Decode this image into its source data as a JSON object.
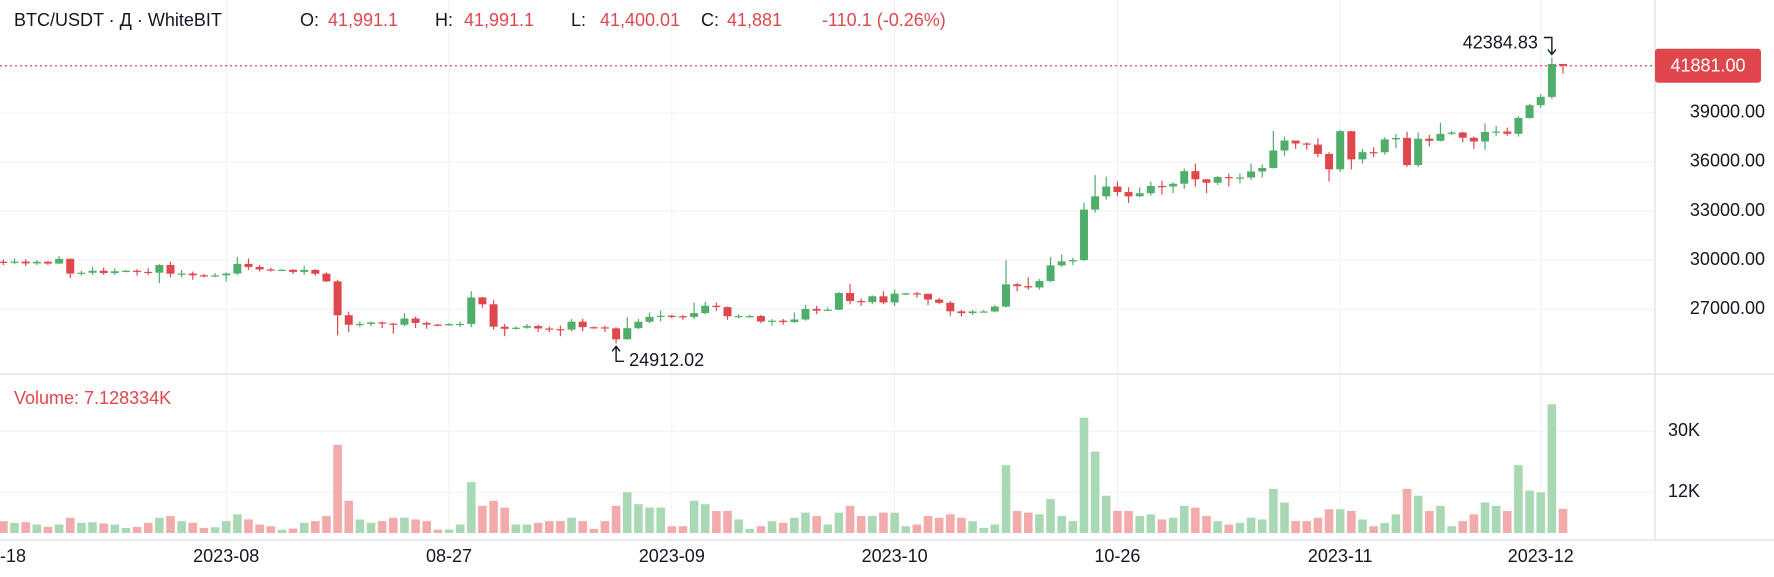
{
  "chart_data": {
    "type": "candlestick",
    "header": {
      "symbol": "BTC/USDT · Д · WhiteBIT",
      "open_label": "O:",
      "open": {
        "value": 41991.1,
        "label": "41,991.1"
      },
      "high_label": "H:",
      "high": {
        "value": 41991.1,
        "label": "41,991.1"
      },
      "low_label": "L:",
      "low": {
        "value": 41400.01,
        "label": "41,400.01"
      },
      "close_label": "C:",
      "close": {
        "value": 41881,
        "label": "41,881"
      },
      "change": "-110.1 (-0.26%)"
    },
    "volume_legend": "Volume: 7.128334K",
    "up_color": "#4fae69",
    "down_color": "#e0474c",
    "volume_up_color": "#a9d9b4",
    "volume_down_color": "#f3aaab",
    "open": [
      29900,
      29850,
      29910,
      29800,
      29900,
      29790,
      30080,
      29180,
      29230,
      29350,
      29210,
      29320,
      29350,
      29280,
      29230,
      29700,
      29170,
      29180,
      29070,
      29060,
      29070,
      29180,
      29770,
      29580,
      29430,
      29400,
      29410,
      29280,
      29400,
      29170,
      28700,
      26630,
      26050,
      26100,
      26190,
      26120,
      26050,
      26430,
      26160,
      26060,
      26010,
      26090,
      26100,
      27720,
      27300,
      25930,
      25800,
      25870,
      25970,
      25820,
      25780,
      25750,
      26240,
      25900,
      25890,
      25830,
      25160,
      25840,
      26230,
      26530,
      26600,
      26570,
      26530,
      26760,
      27210,
      27130,
      26570,
      26580,
      26580,
      26250,
      26300,
      26220,
      26370,
      27020,
      26910,
      26970,
      27990,
      27500,
      27430,
      27790,
      27410,
      27950,
      27970,
      27940,
      27590,
      27390,
      26870,
      26760,
      26860,
      26860,
      27160,
      28520,
      28410,
      28330,
      28720,
      29680,
      29920,
      30000,
      33090,
      33900,
      34500,
      34160,
      33900,
      34090,
      34530,
      34500,
      34670,
      35440,
      34940,
      34730,
      35080,
      35050,
      35050,
      35420,
      35630,
      36700,
      37310,
      37130,
      37060,
      36490,
      35550,
      37880,
      36160,
      36600,
      36590,
      37380,
      37470,
      35810,
      37420,
      37290,
      37720,
      37800,
      37480,
      37250,
      37830,
      37860,
      37720,
      38690,
      39470,
      39980,
      41991.1
    ],
    "high": [
      30050,
      30100,
      30050,
      30000,
      29950,
      30250,
      30100,
      29350,
      29600,
      29550,
      29500,
      29400,
      29450,
      29500,
      29750,
      29900,
      29400,
      29300,
      29150,
      29200,
      29250,
      30200,
      30100,
      29700,
      29550,
      29450,
      29450,
      29650,
      29450,
      29250,
      28800,
      26850,
      26250,
      26250,
      26250,
      26150,
      26750,
      26550,
      26250,
      26100,
      26150,
      26250,
      28100,
      27750,
      27550,
      26100,
      25950,
      26100,
      26050,
      25950,
      26000,
      26400,
      26400,
      25950,
      26000,
      25900,
      26500,
      26400,
      26800,
      26900,
      26650,
      26650,
      27400,
      27450,
      27400,
      27160,
      26700,
      26650,
      26650,
      26400,
      26400,
      26800,
      27250,
      27200,
      27100,
      28050,
      28550,
      27650,
      27850,
      28100,
      28200,
      28000,
      28050,
      27950,
      27700,
      27500,
      26950,
      26950,
      26950,
      27250,
      30000,
      28600,
      28950,
      28850,
      30200,
      30350,
      30150,
      33500,
      35200,
      35100,
      34800,
      34450,
      34450,
      34800,
      34850,
      34750,
      35600,
      35900,
      34950,
      35150,
      35300,
      35300,
      35900,
      35850,
      37900,
      37550,
      37200,
      37200,
      37450,
      36600,
      37950,
      37900,
      36800,
      36900,
      37500,
      37700,
      37850,
      37800,
      37650,
      38400,
      37900,
      37850,
      37550,
      38350,
      38200,
      38100,
      38800,
      39550,
      40150,
      42384.83,
      41991.1
    ],
    "low": [
      29700,
      29750,
      29650,
      29700,
      29700,
      29750,
      28900,
      29050,
      29100,
      29100,
      29100,
      29250,
      29050,
      29100,
      28600,
      28950,
      28950,
      28800,
      28950,
      28950,
      28700,
      29100,
      29400,
      29300,
      29300,
      29350,
      29150,
      29100,
      29050,
      28650,
      25400,
      25600,
      25900,
      25950,
      25850,
      25500,
      25950,
      25850,
      25800,
      25950,
      25990,
      25900,
      25900,
      27100,
      25750,
      25350,
      25750,
      25800,
      25600,
      25600,
      25350,
      25650,
      25650,
      25800,
      25600,
      24912.02,
      25140,
      25780,
      26150,
      26250,
      26450,
      26350,
      26400,
      26700,
      26900,
      26350,
      26450,
      26500,
      26150,
      26000,
      26050,
      26150,
      26300,
      26700,
      26900,
      26950,
      27300,
      27200,
      27300,
      27300,
      27200,
      27850,
      27700,
      27250,
      27300,
      26600,
      26550,
      26650,
      26800,
      26800,
      27100,
      28100,
      28200,
      28200,
      28650,
      29600,
      29700,
      29950,
      32900,
      33700,
      33900,
      33500,
      33850,
      33950,
      34000,
      34100,
      34350,
      34500,
      34100,
      34600,
      34500,
      34700,
      34900,
      35050,
      35600,
      36350,
      36800,
      36750,
      36300,
      34800,
      35400,
      35550,
      35900,
      36300,
      36450,
      36850,
      35700,
      35700,
      36950,
      37250,
      37650,
      37200,
      36800,
      36750,
      37600,
      37600,
      37550,
      38650,
      39300,
      39850,
      41400.01
    ],
    "close": [
      29850,
      29910,
      29800,
      29900,
      29790,
      30080,
      29180,
      29230,
      29350,
      29210,
      29320,
      29350,
      29280,
      29230,
      29700,
      29170,
      29180,
      29070,
      29060,
      29070,
      29180,
      29770,
      29580,
      29430,
      29400,
      29410,
      29280,
      29400,
      29170,
      28700,
      26630,
      26050,
      26100,
      26190,
      26120,
      26050,
      26430,
      26160,
      26060,
      26010,
      26090,
      26100,
      27720,
      27300,
      25930,
      25800,
      25870,
      25970,
      25820,
      25780,
      25750,
      26240,
      25900,
      25890,
      25830,
      25160,
      25840,
      26230,
      26530,
      26600,
      26570,
      26530,
      26760,
      27210,
      27130,
      26570,
      26580,
      26580,
      26250,
      26300,
      26220,
      26370,
      27020,
      26910,
      26970,
      27990,
      27500,
      27430,
      27790,
      27410,
      27950,
      27970,
      27940,
      27590,
      27390,
      26870,
      26760,
      26860,
      26860,
      27160,
      28520,
      28410,
      28330,
      28720,
      29680,
      29920,
      30000,
      33090,
      33900,
      34500,
      34160,
      33900,
      34090,
      34530,
      34500,
      34670,
      35440,
      34940,
      34730,
      35080,
      35050,
      35050,
      35420,
      35630,
      36700,
      37310,
      37130,
      37060,
      36490,
      35550,
      37880,
      36160,
      36600,
      36590,
      37380,
      37470,
      35810,
      37420,
      37290,
      37720,
      37800,
      37480,
      37250,
      37830,
      37860,
      37720,
      38690,
      39470,
      39980,
      41991.1,
      41881
    ],
    "volume": [
      3500,
      3000,
      3200,
      2500,
      1800,
      2500,
      4500,
      3000,
      3200,
      2800,
      2500,
      1500,
      1800,
      3000,
      4500,
      5000,
      3500,
      3000,
      1500,
      1700,
      3500,
      5500,
      4000,
      2500,
      2000,
      1000,
      1300,
      3000,
      3500,
      5000,
      26000,
      9500,
      4000,
      3000,
      3500,
      4500,
      4500,
      4000,
      3500,
      1000,
      1000,
      2500,
      15000,
      8000,
      9500,
      7500,
      2500,
      2500,
      3000,
      3500,
      3500,
      4500,
      3500,
      1200,
      3500,
      8000,
      12000,
      8500,
      7500,
      7500,
      2000,
      2000,
      9500,
      8500,
      6500,
      6500,
      4000,
      1200,
      2000,
      3500,
      3000,
      4500,
      6000,
      5000,
      2500,
      6000,
      8000,
      5000,
      5000,
      6000,
      6000,
      2000,
      2500,
      5000,
      4500,
      5500,
      4500,
      3500,
      1500,
      2500,
      20000,
      6500,
      6000,
      5500,
      10000,
      5000,
      3500,
      34000,
      24000,
      11000,
      6500,
      6500,
      5000,
      5500,
      4000,
      4500,
      8000,
      7500,
      5000,
      3500,
      2500,
      3000,
      4500,
      4000,
      13000,
      9000,
      3500,
      3500,
      4500,
      7000,
      7000,
      6500,
      4000,
      2000,
      3000,
      5500,
      13000,
      11000,
      6500,
      8000,
      2000,
      3500,
      5500,
      9000,
      8000,
      6500,
      20000,
      12500,
      12000,
      38000,
      7128.334
    ],
    "ylim": [
      23100,
      45900
    ],
    "yticks": [
      {
        "value": 27000,
        "label": "27000.00"
      },
      {
        "value": 30000,
        "label": "30000.00"
      },
      {
        "value": 33000,
        "label": "33000.00"
      },
      {
        "value": 36000,
        "label": "36000.00"
      },
      {
        "value": 39000,
        "label": "39000.00"
      }
    ],
    "volume_ylim": [
      0,
      46600
    ],
    "volume_ticks": [
      {
        "value": 12000,
        "label": "12K"
      },
      {
        "value": 30000,
        "label": "30K"
      }
    ],
    "xticks": [
      {
        "value": 0,
        "label": "-18"
      },
      {
        "value": 20,
        "label": "2023-08"
      },
      {
        "value": 40,
        "label": "08-27"
      },
      {
        "value": 60,
        "label": "2023-09"
      },
      {
        "value": 80,
        "label": "2023-10"
      },
      {
        "value": 100,
        "label": "10-26"
      },
      {
        "value": 120,
        "label": "2023-11"
      },
      {
        "value": 138,
        "label": "2023-12"
      }
    ],
    "price_line": {
      "value": 41881,
      "label": "41881.00"
    },
    "max_marker": 42384.83,
    "min_marker": 24912.02,
    "grid": true
  }
}
